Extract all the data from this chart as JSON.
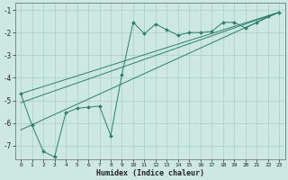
{
  "xlabel": "Humidex (Indice chaleur)",
  "background_color": "#cce8e0",
  "grid_color": "#aacfc8",
  "line_color": "#2e7d6e",
  "xlim": [
    -0.5,
    23.5
  ],
  "ylim": [
    -7.6,
    -0.7
  ],
  "yticks": [
    -7,
    -6,
    -5,
    -4,
    -3,
    -2,
    -1
  ],
  "xticks": [
    0,
    1,
    2,
    3,
    4,
    5,
    6,
    7,
    8,
    9,
    10,
    11,
    12,
    13,
    14,
    15,
    16,
    17,
    18,
    19,
    20,
    21,
    22,
    23
  ],
  "main_x": [
    0,
    1,
    2,
    3,
    4,
    5,
    6,
    7,
    8,
    9,
    10,
    11,
    12,
    13,
    14,
    15,
    16,
    17,
    18,
    19,
    20,
    21,
    22,
    23
  ],
  "main_y": [
    -4.7,
    -6.1,
    -7.25,
    -7.5,
    -5.55,
    -5.35,
    -5.3,
    -5.25,
    -6.55,
    -3.85,
    -1.55,
    -2.05,
    -1.62,
    -1.88,
    -2.12,
    -2.0,
    -2.0,
    -1.95,
    -1.55,
    -1.55,
    -1.8,
    -1.55,
    -1.28,
    -1.1
  ],
  "line1_x": [
    0,
    23
  ],
  "line1_y": [
    -4.7,
    -1.1
  ],
  "line2_x": [
    0,
    23
  ],
  "line2_y": [
    -5.1,
    -1.1
  ],
  "line3_x": [
    0,
    23
  ],
  "line3_y": [
    -6.3,
    -1.1
  ]
}
